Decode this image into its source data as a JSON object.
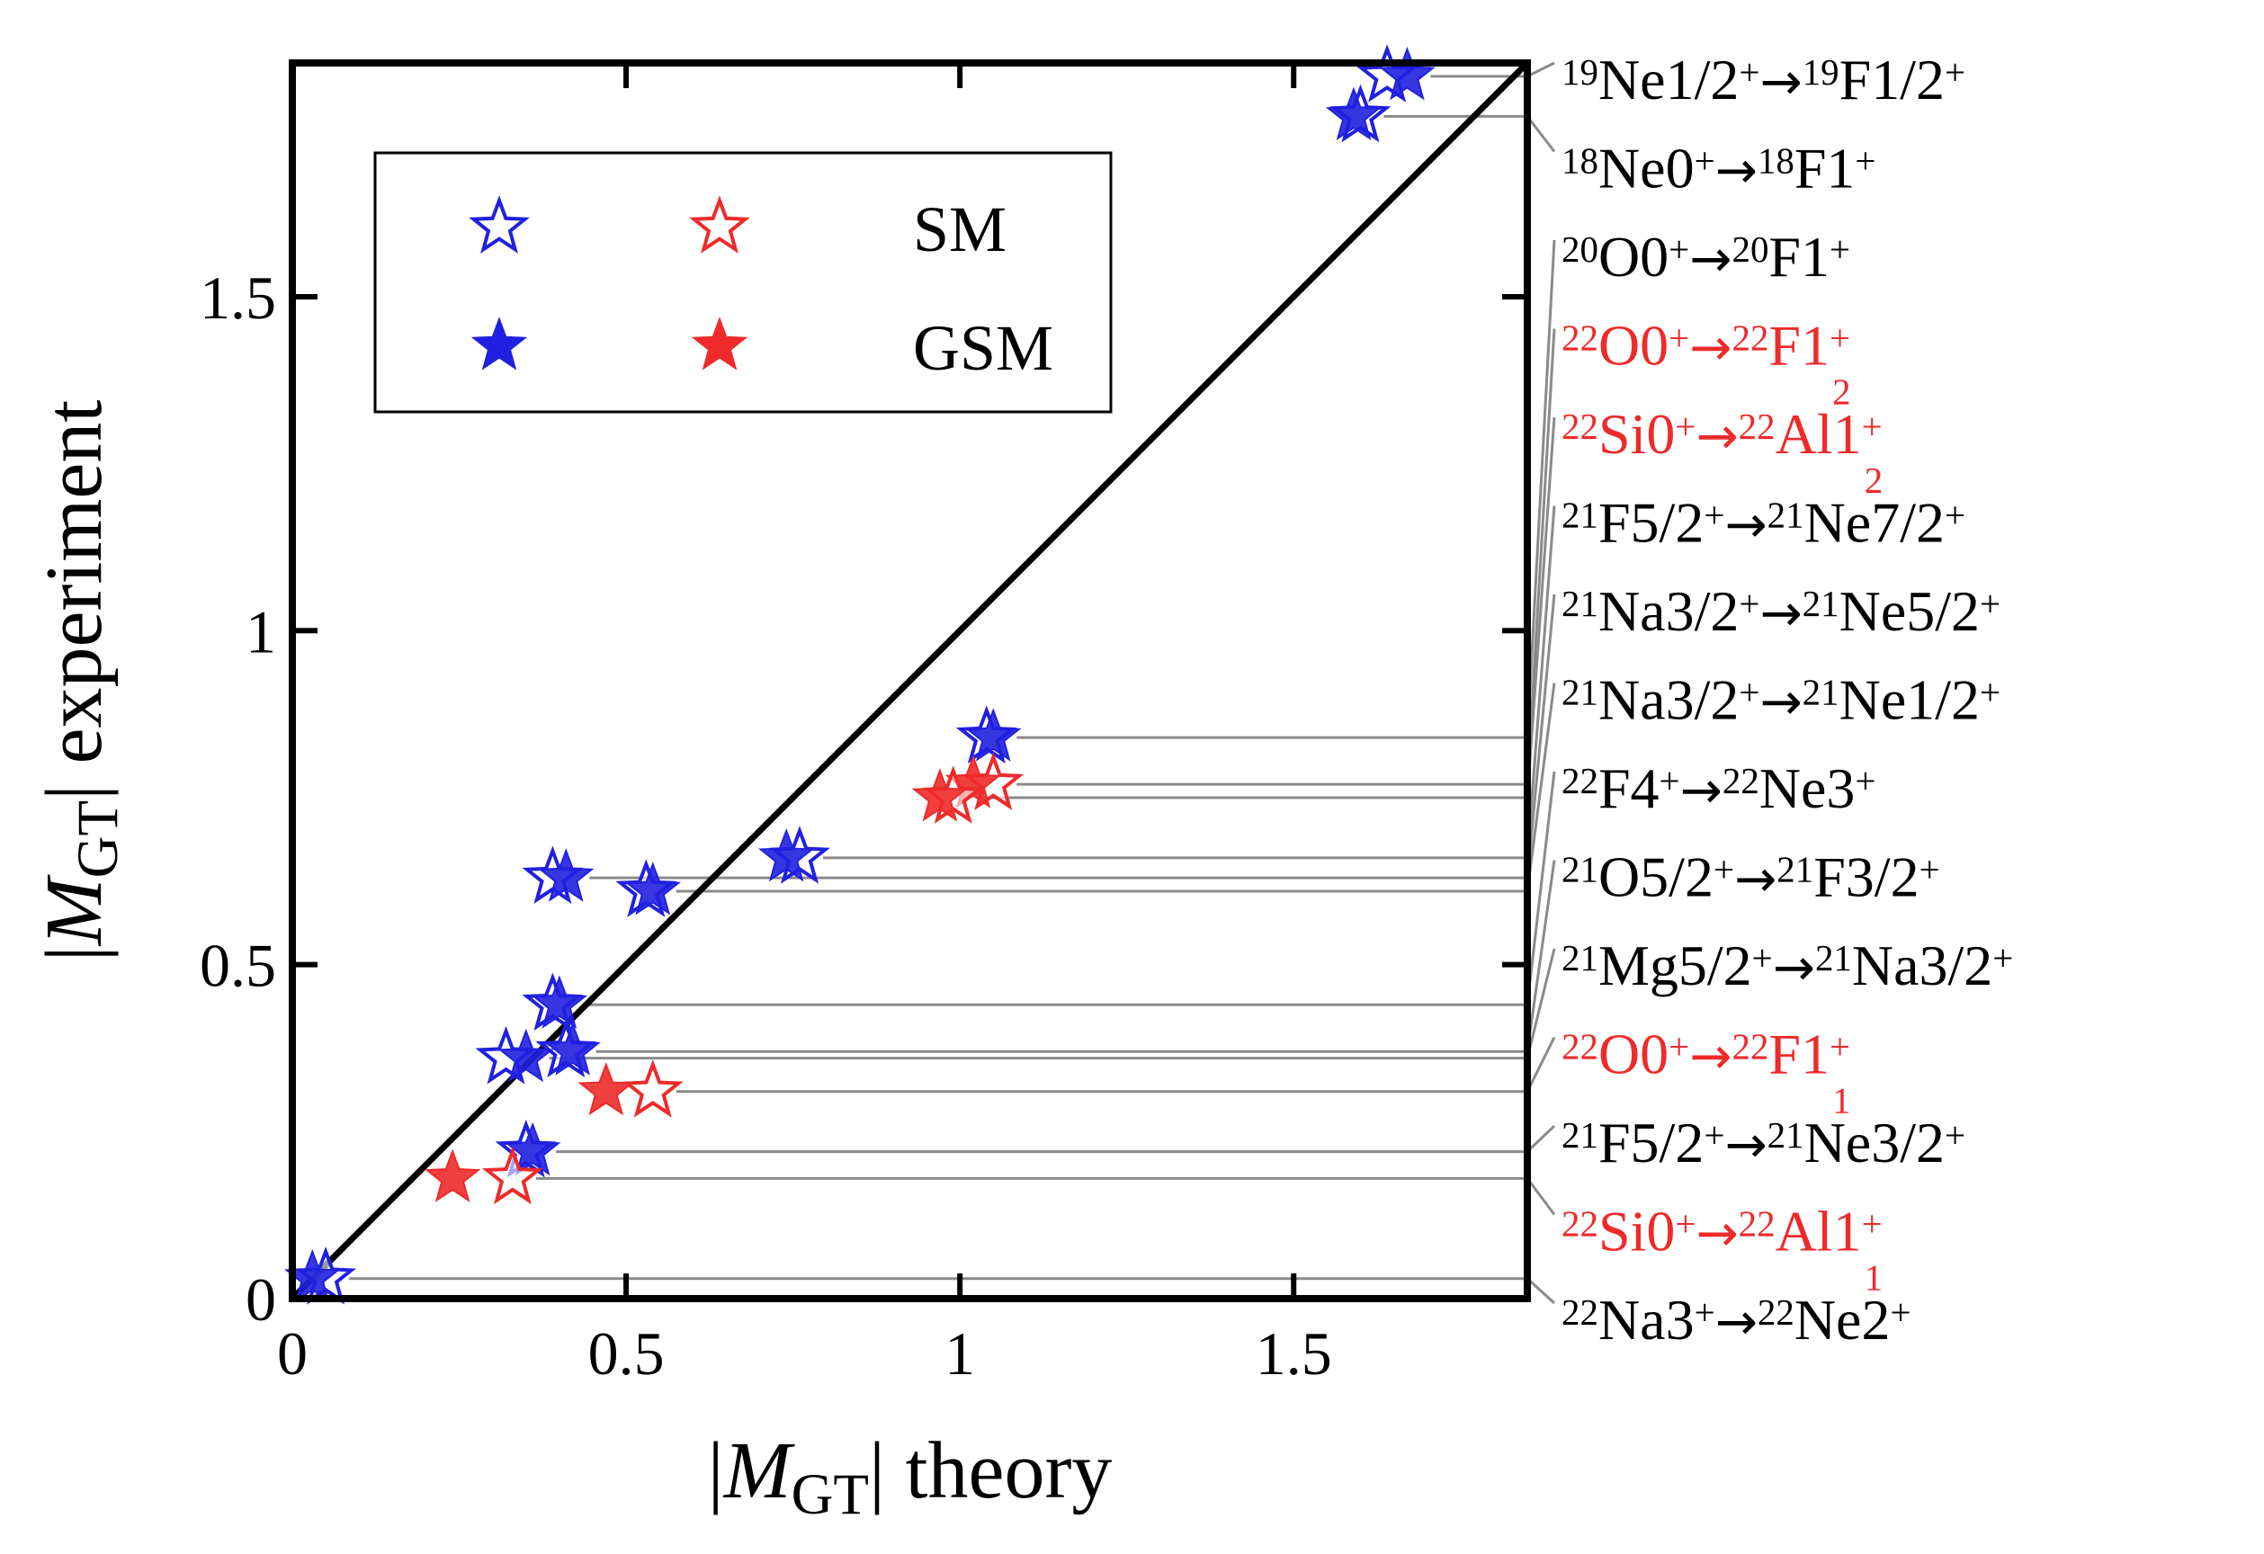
{
  "chart_data": {
    "type": "scatter",
    "xlim": [
      0,
      1.85
    ],
    "ylim": [
      0,
      1.85
    ],
    "xticks": [
      {
        "value": 0,
        "label": "0"
      },
      {
        "value": 0.5,
        "label": "0.5"
      },
      {
        "value": 1,
        "label": "1"
      },
      {
        "value": 1.5,
        "label": "1.5"
      }
    ],
    "yticks": [
      {
        "value": 0,
        "label": "0"
      },
      {
        "value": 0.5,
        "label": "0.5"
      },
      {
        "value": 1,
        "label": "1"
      },
      {
        "value": 1.5,
        "label": "1.5"
      }
    ],
    "xlabel": {
      "pre": "|",
      "var": "M",
      "sub": "GT",
      "post": "| theory"
    },
    "ylabel": {
      "pre": "|",
      "var": "M",
      "sub": "GT",
      "post": "| experiment"
    },
    "legend": {
      "placement": "top-left",
      "entries": [
        {
          "label": "SM",
          "style": "open"
        },
        {
          "label": "GSM",
          "style": "filled"
        }
      ]
    },
    "colors": {
      "blue": "#2020e0",
      "red": "#ee2a2a",
      "black": "#000000",
      "leader": "#8a8a8a"
    },
    "diagonal": true,
    "transitions": [
      {
        "label": "19Ne1/2+ → 19F1/2+",
        "parts": [
          [
            "sup",
            "19"
          ],
          [
            "t",
            "Ne1/2"
          ],
          [
            "sup",
            "+"
          ],
          [
            "arr",
            "→"
          ],
          [
            "sup",
            "19"
          ],
          [
            "t",
            "F1/2"
          ],
          [
            "sup",
            "+"
          ]
        ],
        "color": "black",
        "exp": 1.83,
        "sm": 1.64,
        "gsm": 1.67
      },
      {
        "label": "18Ne0+ → 18F1+",
        "parts": [
          [
            "sup",
            "18"
          ],
          [
            "t",
            "Ne0"
          ],
          [
            "sup",
            "+"
          ],
          [
            "arr",
            "→"
          ],
          [
            "sup",
            "18"
          ],
          [
            "t",
            "F1"
          ],
          [
            "sup",
            "+"
          ]
        ],
        "color": "black",
        "exp": 1.77,
        "sm": 1.6,
        "gsm": 1.59
      },
      {
        "label": "20O0+ → 20F1+",
        "parts": [
          [
            "sup",
            "20"
          ],
          [
            "t",
            "O0"
          ],
          [
            "sup",
            "+"
          ],
          [
            "arr",
            "→"
          ],
          [
            "sup",
            "20"
          ],
          [
            "t",
            "F1"
          ],
          [
            "sup",
            "+"
          ]
        ],
        "color": "black",
        "exp": 0.84,
        "sm": 1.04,
        "gsm": 1.05
      },
      {
        "label": "22O0+ → 22F1+2",
        "parts": [
          [
            "sup",
            "22"
          ],
          [
            "t",
            "O0"
          ],
          [
            "sup",
            "+"
          ],
          [
            "arr",
            "→"
          ],
          [
            "sup",
            "22"
          ],
          [
            "t",
            "F1"
          ],
          [
            "supsub",
            "+",
            "2"
          ]
        ],
        "color": "red",
        "exp": 0.77,
        "sm": 1.05,
        "gsm": 1.02
      },
      {
        "label": "22Si0+ → 22Al1+2",
        "parts": [
          [
            "sup",
            "22"
          ],
          [
            "t",
            "Si0"
          ],
          [
            "sup",
            "+"
          ],
          [
            "arr",
            "→"
          ],
          [
            "sup",
            "22"
          ],
          [
            "t",
            "Al1"
          ],
          [
            "supsub",
            "+",
            "2"
          ]
        ],
        "color": "red",
        "exp": 0.75,
        "sm": 0.99,
        "gsm": 0.97
      },
      {
        "label": "21F5/2+ → 21Ne7/2+",
        "parts": [
          [
            "sup",
            "21"
          ],
          [
            "t",
            "F5/2"
          ],
          [
            "sup",
            "+"
          ],
          [
            "arr",
            "→"
          ],
          [
            "sup",
            "21"
          ],
          [
            "t",
            "Ne7/2"
          ],
          [
            "sup",
            "+"
          ]
        ],
        "color": "black",
        "exp": 0.66,
        "sm": 0.76,
        "gsm": 0.74
      },
      {
        "label": "21Na3/2+ → 21Ne5/2+",
        "parts": [
          [
            "sup",
            "21"
          ],
          [
            "t",
            "Na3/2"
          ],
          [
            "sup",
            "+"
          ],
          [
            "arr",
            "→"
          ],
          [
            "sup",
            "21"
          ],
          [
            "t",
            "Ne5/2"
          ],
          [
            "sup",
            "+"
          ]
        ],
        "color": "black",
        "exp": 0.63,
        "sm": 0.39,
        "gsm": 0.41
      },
      {
        "label": "21Na3/2+ → 21Ne1/2+",
        "parts": [
          [
            "sup",
            "21"
          ],
          [
            "t",
            "Na3/2"
          ],
          [
            "sup",
            "+"
          ],
          [
            "arr",
            "→"
          ],
          [
            "sup",
            "21"
          ],
          [
            "t",
            "Ne1/2"
          ],
          [
            "sup",
            "+"
          ]
        ],
        "color": "black",
        "exp": 0.61,
        "sm": 0.53,
        "gsm": 0.54
      },
      {
        "label": "22F4+ → 22Ne3+",
        "parts": [
          [
            "sup",
            "22"
          ],
          [
            "t",
            "F4"
          ],
          [
            "sup",
            "+"
          ],
          [
            "arr",
            "→"
          ],
          [
            "sup",
            "22"
          ],
          [
            "t",
            "Ne3"
          ],
          [
            "sup",
            "+"
          ]
        ],
        "color": "black",
        "exp": 0.44,
        "sm": 0.39,
        "gsm": 0.4
      },
      {
        "label": "21O5/2+ → 21F3/2+",
        "parts": [
          [
            "sup",
            "21"
          ],
          [
            "t",
            "O5/2"
          ],
          [
            "sup",
            "+"
          ],
          [
            "arr",
            "→"
          ],
          [
            "sup",
            "21"
          ],
          [
            "t",
            "F3/2"
          ],
          [
            "sup",
            "+"
          ]
        ],
        "color": "black",
        "exp": 0.37,
        "sm": 0.41,
        "gsm": 0.42
      },
      {
        "label": "21Mg5/2+ → 21Na3/2+",
        "parts": [
          [
            "sup",
            "21"
          ],
          [
            "t",
            "Mg5/2"
          ],
          [
            "sup",
            "+"
          ],
          [
            "arr",
            "→"
          ],
          [
            "sup",
            "21"
          ],
          [
            "t",
            "Na3/2"
          ],
          [
            "sup",
            "+"
          ]
        ],
        "color": "black",
        "exp": 0.36,
        "sm": 0.32,
        "gsm": 0.35
      },
      {
        "label": "22O0+ → 22F1+1",
        "parts": [
          [
            "sup",
            "22"
          ],
          [
            "t",
            "O0"
          ],
          [
            "sup",
            "+"
          ],
          [
            "arr",
            "→"
          ],
          [
            "sup",
            "22"
          ],
          [
            "t",
            "F1"
          ],
          [
            "supsub",
            "+",
            "1"
          ]
        ],
        "color": "red",
        "exp": 0.31,
        "sm": 0.54,
        "gsm": 0.47
      },
      {
        "label": "21F5/2+ → 21Ne3/2+",
        "parts": [
          [
            "sup",
            "21"
          ],
          [
            "t",
            "F5/2"
          ],
          [
            "sup",
            "+"
          ],
          [
            "arr",
            "→"
          ],
          [
            "sup",
            "21"
          ],
          [
            "t",
            "Ne3/2"
          ],
          [
            "sup",
            "+"
          ]
        ],
        "color": "black",
        "exp": 0.22,
        "sm": 0.35,
        "gsm": 0.36
      },
      {
        "label": "22Si0+ → 22Al1+1",
        "parts": [
          [
            "sup",
            "22"
          ],
          [
            "t",
            "Si0"
          ],
          [
            "sup",
            "+"
          ],
          [
            "arr",
            "→"
          ],
          [
            "sup",
            "22"
          ],
          [
            "t",
            "Al1"
          ],
          [
            "supsub",
            "+",
            "1"
          ]
        ],
        "color": "red",
        "exp": 0.18,
        "sm": 0.33,
        "gsm": 0.24
      },
      {
        "label": "22Na3+ → 22Ne2+",
        "parts": [
          [
            "sup",
            "22"
          ],
          [
            "t",
            "Na3"
          ],
          [
            "sup",
            "+"
          ],
          [
            "arr",
            "→"
          ],
          [
            "sup",
            "22"
          ],
          [
            "t",
            "Ne2"
          ],
          [
            "sup",
            "+"
          ]
        ],
        "color": "black",
        "exp": 0.03,
        "sm": 0.05,
        "gsm": 0.03
      }
    ]
  }
}
